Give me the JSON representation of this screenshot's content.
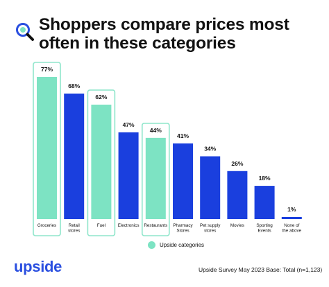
{
  "title": "Shoppers compare prices most often in these categories",
  "icons": {
    "header": "search-icon"
  },
  "colors": {
    "highlight": "#7de3c3",
    "standard": "#1a3fde",
    "highlight_outline": "#8fe6cb"
  },
  "legend": {
    "label": "Upside categories"
  },
  "logo": "upside",
  "footnote": "Upside Survey May 2023 Base: Total (n=1,123)",
  "chart_data": {
    "type": "bar",
    "categories": [
      "Groceries",
      "Retail stores",
      "Fuel",
      "Electronics",
      "Restaurants",
      "Pharmacy Stores",
      "Pet supply stores",
      "Movies",
      "Sporting Events",
      "None of the above"
    ],
    "values": [
      77,
      68,
      62,
      47,
      44,
      41,
      34,
      26,
      18,
      1
    ],
    "data_labels": [
      "77%",
      "68%",
      "62%",
      "47%",
      "44%",
      "41%",
      "34%",
      "26%",
      "18%",
      "1%"
    ],
    "highlighted": [
      true,
      false,
      true,
      false,
      true,
      false,
      false,
      false,
      false,
      false
    ],
    "ylim": [
      0,
      100
    ],
    "grid": false,
    "legend_position": "bottom-center"
  }
}
